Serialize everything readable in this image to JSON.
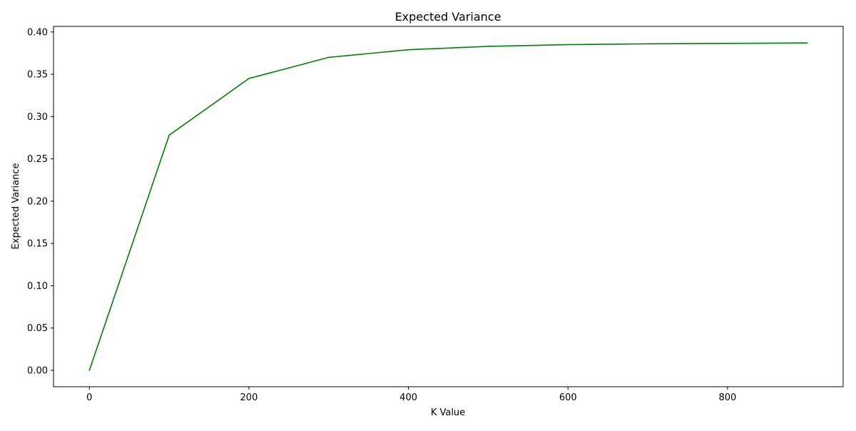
{
  "chart_data": {
    "type": "line",
    "title": "Expected Variance",
    "xlabel": "K Value",
    "ylabel": "Expected Variance",
    "xlim": [
      -45,
      945
    ],
    "ylim": [
      -0.0194,
      0.4066
    ],
    "xticks": [
      0,
      200,
      400,
      600,
      800
    ],
    "xtick_labels": [
      "0",
      "200",
      "400",
      "600",
      "800"
    ],
    "yticks": [
      0.0,
      0.05,
      0.1,
      0.15,
      0.2,
      0.25,
      0.3,
      0.35,
      0.4
    ],
    "ytick_labels": [
      "0.00",
      "0.05",
      "0.10",
      "0.15",
      "0.20",
      "0.25",
      "0.30",
      "0.35",
      "0.40"
    ],
    "grid": false,
    "series": [
      {
        "name": "Expected Variance",
        "color": "#008000",
        "x": [
          0,
          100,
          200,
          300,
          400,
          500,
          600,
          700,
          800,
          900
        ],
        "y": [
          0.0,
          0.278,
          0.345,
          0.37,
          0.379,
          0.383,
          0.385,
          0.386,
          0.3865,
          0.387
        ]
      }
    ]
  }
}
